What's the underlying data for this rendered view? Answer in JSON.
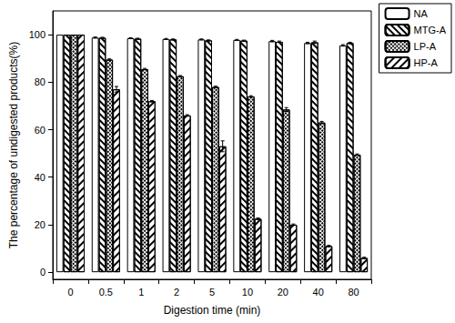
{
  "chart_data": {
    "type": "bar",
    "x_label": "Digestion time (min)",
    "y_label": "The percentage of undigested products(%)",
    "categories": [
      "0",
      "0.5",
      "1",
      "2",
      "5",
      "10",
      "20",
      "40",
      "80"
    ],
    "series": [
      {
        "name": "NA",
        "color": "#ffffff",
        "values": [
          100,
          98.8,
          98.5,
          98.2,
          98,
          97.8,
          97.3,
          96.5,
          95.5
        ],
        "errors": [
          0,
          0.2,
          0.2,
          0.2,
          0.2,
          0.2,
          0.3,
          0.3,
          0.3
        ]
      },
      {
        "name": "MTG-A",
        "color": "#ffffff",
        "values": [
          100,
          98.7,
          98.3,
          98,
          97.6,
          97.5,
          97,
          96.8,
          96.5
        ],
        "errors": [
          0,
          0.2,
          0.2,
          0.2,
          0.2,
          0.2,
          0.3,
          0.5,
          0.3
        ]
      },
      {
        "name": "LP-A",
        "color": "#ffffff",
        "values": [
          100,
          89.5,
          85.5,
          82.5,
          78,
          74,
          68.5,
          63,
          49.5
        ],
        "errors": [
          0,
          0.3,
          0.3,
          0.3,
          0.3,
          0.3,
          0.8,
          0.5,
          0.3
        ]
      },
      {
        "name": "HP-A",
        "color": "#ffffff",
        "values": [
          100,
          77,
          72,
          66,
          53,
          22.5,
          20,
          11,
          6
        ],
        "errors": [
          0,
          1.2,
          0.3,
          0.3,
          2.3,
          0.3,
          0.3,
          0.3,
          0.3
        ]
      }
    ],
    "ylim": [
      -3,
      110
    ],
    "yticks": [
      0,
      20,
      40,
      60,
      80,
      100
    ],
    "legend": "upper right",
    "grid": false
  }
}
